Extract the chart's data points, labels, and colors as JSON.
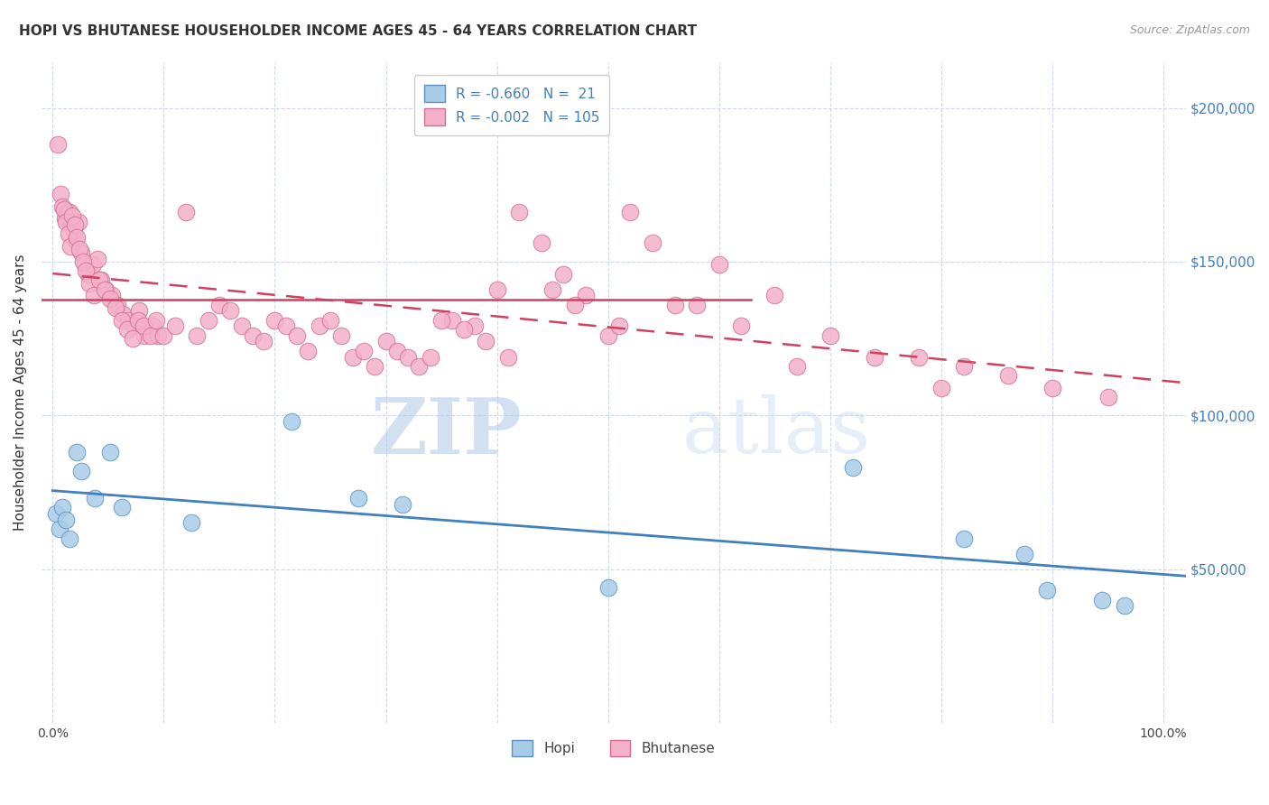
{
  "title": "HOPI VS BHUTANESE HOUSEHOLDER INCOME AGES 45 - 64 YEARS CORRELATION CHART",
  "source": "Source: ZipAtlas.com",
  "ylabel": "Householder Income Ages 45 - 64 years",
  "legend_hopi": "R = -0.660   N =  21",
  "legend_bhutanese": "R = -0.002   N = 105",
  "legend_label_hopi": "Hopi",
  "legend_label_bhutanese": "Bhutanese",
  "watermark_zip": "ZIP",
  "watermark_atlas": "atlas",
  "hopi_color": "#a8cce8",
  "bhutanese_color": "#f4b0c8",
  "hopi_edge": "#6090c0",
  "bhutanese_edge": "#d07090",
  "blue_line_color": "#4080c0",
  "pink_line_color": "#d04060",
  "right_axis_color": "#4080c0",
  "ytick_labels": [
    "$200,000",
    "$150,000",
    "$100,000",
    "$50,000"
  ],
  "ytick_values": [
    200000,
    150000,
    100000,
    50000
  ],
  "ylim": [
    0,
    215000
  ],
  "xlim": [
    -0.01,
    1.02
  ],
  "hopi_x": [
    0.003,
    0.006,
    0.009,
    0.012,
    0.015,
    0.022,
    0.026,
    0.038,
    0.052,
    0.062,
    0.125,
    0.215,
    0.275,
    0.315,
    0.5,
    0.72,
    0.82,
    0.875,
    0.895,
    0.945,
    0.965
  ],
  "hopi_y": [
    68000,
    63000,
    70000,
    66000,
    60000,
    88000,
    82000,
    73000,
    88000,
    70000,
    65000,
    98000,
    73000,
    71000,
    44000,
    83000,
    60000,
    55000,
    43000,
    40000,
    38000
  ],
  "bhutanese_x": [
    0.005,
    0.007,
    0.009,
    0.011,
    0.013,
    0.015,
    0.017,
    0.019,
    0.021,
    0.023,
    0.026,
    0.029,
    0.032,
    0.036,
    0.04,
    0.044,
    0.048,
    0.053,
    0.058,
    0.063,
    0.068,
    0.073,
    0.078,
    0.083,
    0.09,
    0.095,
    0.01,
    0.012,
    0.014,
    0.016,
    0.018,
    0.02,
    0.022,
    0.024,
    0.027,
    0.03,
    0.033,
    0.037,
    0.042,
    0.047,
    0.052,
    0.057,
    0.062,
    0.067,
    0.072,
    0.077,
    0.082,
    0.088,
    0.093,
    0.1,
    0.11,
    0.12,
    0.13,
    0.14,
    0.15,
    0.16,
    0.17,
    0.18,
    0.19,
    0.2,
    0.21,
    0.22,
    0.23,
    0.24,
    0.25,
    0.26,
    0.27,
    0.28,
    0.29,
    0.3,
    0.31,
    0.32,
    0.33,
    0.34,
    0.36,
    0.38,
    0.4,
    0.42,
    0.44,
    0.46,
    0.48,
    0.5,
    0.52,
    0.54,
    0.58,
    0.6,
    0.65,
    0.7,
    0.78,
    0.82,
    0.86,
    0.9,
    0.95,
    0.35,
    0.37,
    0.39,
    0.41,
    0.45,
    0.47,
    0.51,
    0.56,
    0.62,
    0.67,
    0.74,
    0.8
  ],
  "bhutanese_y": [
    188000,
    172000,
    168000,
    164000,
    166000,
    166000,
    163000,
    160000,
    157000,
    163000,
    153000,
    149000,
    146000,
    149000,
    151000,
    144000,
    141000,
    139000,
    136000,
    133000,
    131000,
    129000,
    134000,
    126000,
    129000,
    126000,
    167000,
    163000,
    159000,
    155000,
    165000,
    162000,
    158000,
    154000,
    150000,
    147000,
    143000,
    139000,
    144000,
    141000,
    138000,
    135000,
    131000,
    128000,
    125000,
    131000,
    129000,
    126000,
    131000,
    126000,
    129000,
    166000,
    126000,
    131000,
    136000,
    134000,
    129000,
    126000,
    124000,
    131000,
    129000,
    126000,
    121000,
    129000,
    131000,
    126000,
    119000,
    121000,
    116000,
    124000,
    121000,
    119000,
    116000,
    119000,
    131000,
    129000,
    141000,
    166000,
    156000,
    146000,
    139000,
    126000,
    166000,
    156000,
    136000,
    149000,
    139000,
    126000,
    119000,
    116000,
    113000,
    109000,
    106000,
    131000,
    128000,
    124000,
    119000,
    141000,
    136000,
    129000,
    136000,
    129000,
    116000,
    119000,
    109000
  ],
  "background_color": "#ffffff",
  "plot_bg_color": "#ffffff",
  "grid_color": "#d0d8e8",
  "title_fontsize": 11,
  "source_fontsize": 9
}
